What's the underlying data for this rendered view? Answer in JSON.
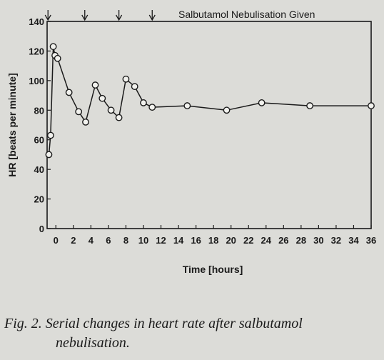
{
  "caption": {
    "label": "Fig. 2.",
    "text_line1": "Serial changes in heart rate after salbutamol",
    "text_line2": "nebulisation."
  },
  "chart_data": {
    "type": "line",
    "xlabel": "Time [hours]",
    "ylabel": "HR [beats per minute]",
    "xlim": [
      -1,
      36
    ],
    "ylim": [
      0,
      140
    ],
    "xticks": [
      "0",
      "2",
      "4",
      "6",
      "8",
      "10",
      "12",
      "14",
      "16",
      "18",
      "20",
      "22",
      "24",
      "26",
      "28",
      "30",
      "32",
      "34",
      "36"
    ],
    "yticks": [
      "0",
      "20",
      "40",
      "60",
      "80",
      "100",
      "120",
      "140"
    ],
    "annotation": "Salbutamol Nebulisation Given",
    "nebulisation_times": [
      -0.9,
      3.3,
      7.2,
      11.0
    ],
    "grid": false,
    "series": [
      {
        "x": [
          -0.8,
          -0.6,
          -0.3,
          -0.1,
          0.2,
          1.5,
          2.6,
          3.4,
          4.5,
          5.3,
          6.3,
          7.2,
          8.0,
          9.0,
          10.0,
          11.0,
          15.0,
          19.5,
          23.5,
          29.0,
          36.0
        ],
        "y": [
          50,
          63,
          123,
          117,
          115,
          92,
          79,
          72,
          97,
          88,
          80,
          75,
          101,
          96,
          85,
          82,
          83,
          80,
          85,
          83,
          83
        ]
      }
    ]
  }
}
